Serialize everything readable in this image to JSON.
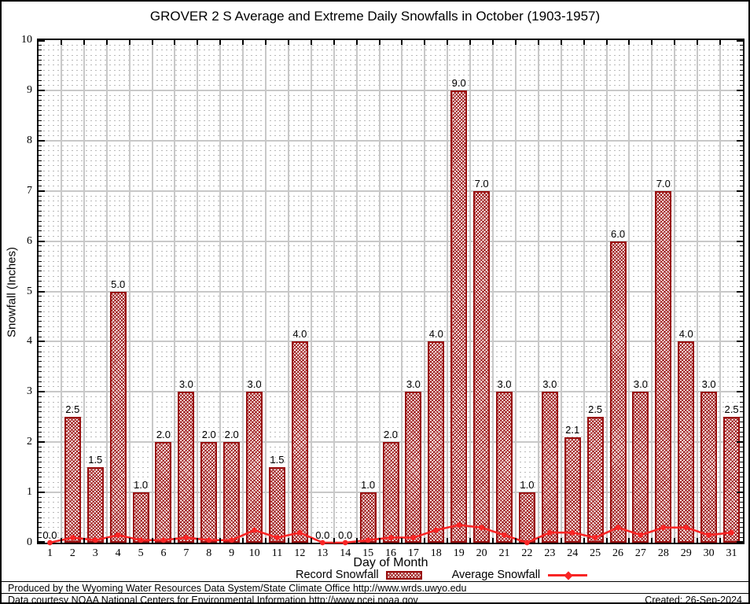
{
  "title": "GROVER 2 S Average and Extreme Daily Snowfalls in October (1903-1957)",
  "chart_data": {
    "type": "bar",
    "title": "GROVER 2 S Average and Extreme Daily Snowfalls in October (1903-1957)",
    "xlabel": "Day of Month",
    "ylabel": "Snowfall (Inches)",
    "ylim": [
      0,
      10
    ],
    "y_major_step": 1,
    "y_minor_step": 0.1,
    "grid": "major-and-minor",
    "legend_position": "bottom",
    "y_tick_labels": [
      "0",
      "1",
      "2",
      "3",
      "4",
      "5",
      "6",
      "7",
      "8",
      "9",
      "10"
    ],
    "categories": [
      "1",
      "2",
      "3",
      "4",
      "5",
      "6",
      "7",
      "8",
      "9",
      "10",
      "11",
      "12",
      "13",
      "14",
      "15",
      "16",
      "17",
      "18",
      "19",
      "20",
      "21",
      "22",
      "23",
      "24",
      "25",
      "26",
      "27",
      "28",
      "29",
      "30",
      "31"
    ],
    "series": [
      {
        "name": "Record Snowfall",
        "type": "bar",
        "values": [
          0,
          2.5,
          1.5,
          5,
          1,
          2,
          3,
          2,
          2,
          3,
          1.5,
          4,
          0,
          0,
          1,
          2,
          3,
          4,
          9,
          7,
          3,
          1,
          3,
          2.1,
          2.5,
          6,
          3,
          7,
          4,
          3,
          2.5
        ],
        "labels": [
          "0.0",
          "2.5",
          "1.5",
          "5.0",
          "1.0",
          "2.0",
          "3.0",
          "2.0",
          "2.0",
          "3.0",
          "1.5",
          "4.0",
          "0.0",
          "0.0",
          "1.0",
          "2.0",
          "3.0",
          "4.0",
          "9.0",
          "7.0",
          "3.0",
          "1.0",
          "3.0",
          "2.1",
          "2.5",
          "6.0",
          "3.0",
          "7.0",
          "4.0",
          "3.0",
          "2.5"
        ]
      },
      {
        "name": "Average Snowfall",
        "type": "line",
        "values": [
          0,
          0.1,
          0.05,
          0.15,
          0.05,
          0.05,
          0.1,
          0.05,
          0.05,
          0.25,
          0.1,
          0.2,
          0,
          0,
          0.05,
          0.1,
          0.1,
          0.25,
          0.35,
          0.3,
          0.15,
          0,
          0.2,
          0.2,
          0.1,
          0.3,
          0.15,
          0.3,
          0.3,
          0.15,
          0.2
        ]
      }
    ]
  },
  "legend": {
    "record_label": "Record Snowfall",
    "average_label": "Average Snowfall"
  },
  "footer": {
    "line1": "Produced by the Wyoming Water Resources Data System/State Climate Office http://www.wrds.uwyo.edu",
    "line2": "Data courtesy NOAA National Centers for Environmental Information http://www.ncei.noaa.gov",
    "created": "Created: 26-Sep-2024"
  },
  "colors": {
    "bar_border": "#990f0f",
    "bar_hatch": "#9b1414",
    "average_line": "#f82525",
    "grid_major": "#c8c8c8",
    "grid_minor": "#b9b9b9",
    "frame": "#000000"
  }
}
